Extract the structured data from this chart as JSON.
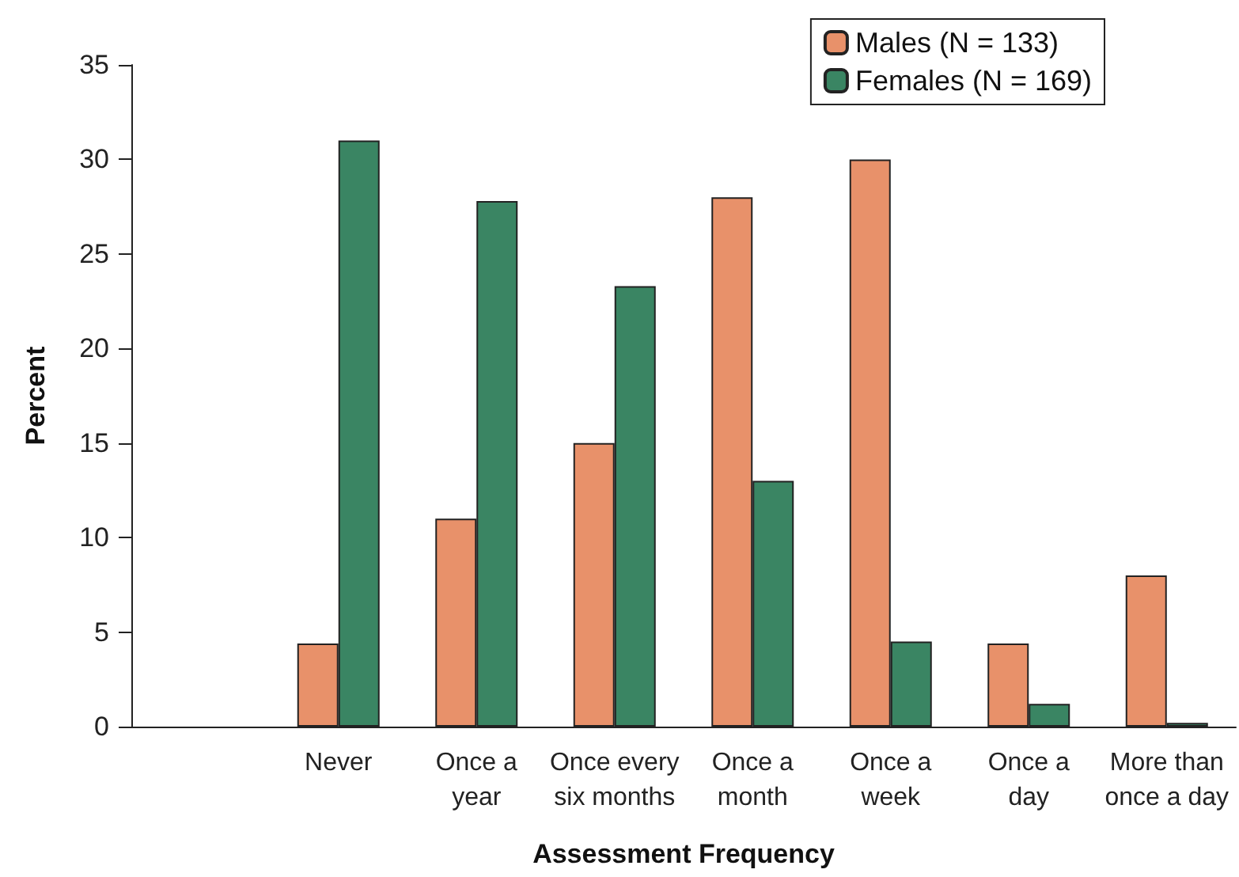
{
  "chart_data": {
    "type": "bar",
    "xlabel": "Assessment Frequency",
    "ylabel": "Percent",
    "categories": [
      null,
      "Never",
      "Once a\nyear",
      "Once every\nsix months",
      "Once a\nmonth",
      "Once a\nweek",
      "Once a\nday",
      "More than\nonce a day"
    ],
    "series": [
      {
        "name": "Males (N = 133)",
        "color": "#e8916a",
        "values": [
          null,
          4.4,
          11,
          15,
          28,
          30,
          4.4,
          8
        ]
      },
      {
        "name": "Females (N = 169)",
        "color": "#3a8563",
        "values": [
          null,
          31,
          27.8,
          23.3,
          13,
          4.5,
          1.2,
          0.2
        ]
      }
    ],
    "ylim": [
      0,
      35
    ],
    "yticks": [
      0,
      5,
      10,
      15,
      20,
      25,
      30,
      35
    ],
    "grid": false,
    "legend": "top right"
  }
}
